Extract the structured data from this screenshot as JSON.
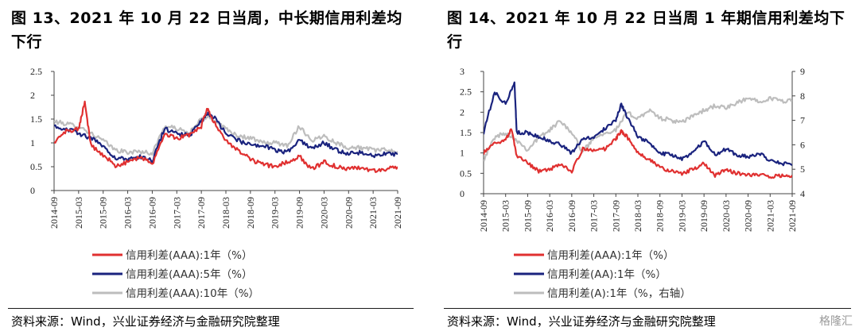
{
  "charts": [
    {
      "title": "图 13、2021 年 10 月 22 日当周，中长期信用利差均下行",
      "source": "资料来源：Wind，兴业证券经济与金融研究院整理",
      "chart_data": {
        "type": "line",
        "x_ticks": [
          "2014-09",
          "2015-03",
          "2015-09",
          "2016-03",
          "2016-09",
          "2017-03",
          "2017-09",
          "2018-03",
          "2018-09",
          "2019-03",
          "2019-09",
          "2020-03",
          "2020-09",
          "2021-03",
          "2021-09"
        ],
        "y_ticks": [
          "0",
          "0.5",
          "1",
          "1.5",
          "2",
          "2.5"
        ],
        "ylim": [
          0,
          2.5
        ],
        "legend_position": "bottom",
        "series": [
          {
            "name": "信用利差(AAA):1年（%）",
            "color": "#e03030",
            "axis": "left",
            "points": [
              [
                0,
                1.0
              ],
              [
                1,
                1.25
              ],
              [
                2,
                1.3
              ],
              [
                2.5,
                1.85
              ],
              [
                3,
                0.95
              ],
              [
                4,
                0.75
              ],
              [
                5,
                0.52
              ],
              [
                6,
                0.6
              ],
              [
                7,
                0.7
              ],
              [
                8,
                0.55
              ],
              [
                9,
                1.2
              ],
              [
                10,
                1.1
              ],
              [
                11,
                1.15
              ],
              [
                12,
                1.35
              ],
              [
                12.5,
                1.72
              ],
              [
                13,
                1.45
              ],
              [
                14,
                1.05
              ],
              [
                15,
                0.85
              ],
              [
                16,
                0.65
              ],
              [
                17,
                0.55
              ],
              [
                18,
                0.5
              ],
              [
                19,
                0.6
              ],
              [
                20,
                0.72
              ],
              [
                21,
                0.45
              ],
              [
                22,
                0.6
              ],
              [
                23,
                0.5
              ],
              [
                24,
                0.45
              ],
              [
                25,
                0.48
              ],
              [
                26,
                0.42
              ],
              [
                27,
                0.45
              ],
              [
                28,
                0.5
              ]
            ]
          },
          {
            "name": "信用利差(AAA):5年（%）",
            "color": "#1a237e",
            "axis": "left",
            "points": [
              [
                0,
                1.35
              ],
              [
                1,
                1.3
              ],
              [
                2,
                1.2
              ],
              [
                3,
                1.1
              ],
              [
                4,
                0.95
              ],
              [
                5,
                0.68
              ],
              [
                6,
                0.65
              ],
              [
                7,
                0.7
              ],
              [
                8,
                0.62
              ],
              [
                9,
                1.3
              ],
              [
                10,
                1.2
              ],
              [
                11,
                1.15
              ],
              [
                12,
                1.45
              ],
              [
                12.5,
                1.62
              ],
              [
                13,
                1.55
              ],
              [
                14,
                1.2
              ],
              [
                15,
                1.05
              ],
              [
                16,
                0.95
              ],
              [
                17,
                0.95
              ],
              [
                18,
                0.85
              ],
              [
                19,
                0.8
              ],
              [
                20,
                1.05
              ],
              [
                21,
                0.9
              ],
              [
                22,
                1.0
              ],
              [
                23,
                0.85
              ],
              [
                24,
                0.78
              ],
              [
                25,
                0.8
              ],
              [
                26,
                0.72
              ],
              [
                27,
                0.78
              ],
              [
                28,
                0.76
              ]
            ]
          },
          {
            "name": "信用利差(AAA):10年（%）",
            "color": "#bdbdbd",
            "axis": "left",
            "points": [
              [
                0,
                1.45
              ],
              [
                1,
                1.4
              ],
              [
                2,
                1.35
              ],
              [
                3,
                1.2
              ],
              [
                4,
                1.05
              ],
              [
                5,
                0.85
              ],
              [
                6,
                0.8
              ],
              [
                7,
                0.82
              ],
              [
                8,
                0.78
              ],
              [
                9,
                1.35
              ],
              [
                10,
                1.3
              ],
              [
                11,
                1.2
              ],
              [
                12,
                1.5
              ],
              [
                12.5,
                1.55
              ],
              [
                13,
                1.5
              ],
              [
                14,
                1.3
              ],
              [
                15,
                1.15
              ],
              [
                16,
                1.1
              ],
              [
                17,
                1.0
              ],
              [
                18,
                1.0
              ],
              [
                19,
                0.95
              ],
              [
                20,
                1.35
              ],
              [
                21,
                1.05
              ],
              [
                22,
                1.15
              ],
              [
                23,
                1.0
              ],
              [
                24,
                0.9
              ],
              [
                25,
                0.9
              ],
              [
                26,
                0.85
              ],
              [
                27,
                0.85
              ],
              [
                28,
                0.82
              ]
            ]
          }
        ]
      }
    },
    {
      "title": "图 14、2021 年 10 月 22 日当周 1 年期信用利差均下行",
      "source": "资料来源：Wind，兴业证券经济与金融研究院整理",
      "watermark": "格隆汇",
      "chart_data": {
        "type": "line",
        "x_ticks": [
          "2014-09",
          "2015-03",
          "2015-09",
          "2016-03",
          "2016-09",
          "2017-03",
          "2017-09",
          "2018-03",
          "2018-09",
          "2019-03",
          "2019-09",
          "2020-03",
          "2020-09",
          "2021-03",
          "2021-09"
        ],
        "y_ticks": [
          "0",
          "0.5",
          "1",
          "1.5",
          "2",
          "2.5",
          "3"
        ],
        "y2_ticks": [
          "4",
          "5",
          "6",
          "7",
          "8",
          "9"
        ],
        "ylim": [
          0,
          3
        ],
        "y2lim": [
          4,
          9
        ],
        "legend_position": "bottom",
        "series": [
          {
            "name": "信用利差(AAA):1年（%）",
            "color": "#e03030",
            "axis": "left",
            "points": [
              [
                0,
                1.0
              ],
              [
                1,
                1.25
              ],
              [
                2,
                1.3
              ],
              [
                2.5,
                1.6
              ],
              [
                3,
                0.95
              ],
              [
                4,
                0.75
              ],
              [
                5,
                0.55
              ],
              [
                6,
                0.6
              ],
              [
                7,
                0.72
              ],
              [
                8,
                0.55
              ],
              [
                9,
                1.1
              ],
              [
                10,
                1.05
              ],
              [
                11,
                1.1
              ],
              [
                12,
                1.35
              ],
              [
                12.5,
                1.55
              ],
              [
                13,
                1.4
              ],
              [
                14,
                1.0
              ],
              [
                15,
                0.85
              ],
              [
                16,
                0.65
              ],
              [
                17,
                0.55
              ],
              [
                18,
                0.5
              ],
              [
                19,
                0.6
              ],
              [
                20,
                0.75
              ],
              [
                21,
                0.45
              ],
              [
                22,
                0.6
              ],
              [
                23,
                0.5
              ],
              [
                24,
                0.45
              ],
              [
                25,
                0.48
              ],
              [
                26,
                0.42
              ],
              [
                27,
                0.45
              ],
              [
                28,
                0.45
              ]
            ]
          },
          {
            "name": "信用利差(AA):1年（%）",
            "color": "#1a237e",
            "axis": "left",
            "points": [
              [
                0,
                1.5
              ],
              [
                1,
                2.5
              ],
              [
                2,
                2.2
              ],
              [
                2.8,
                2.75
              ],
              [
                3,
                1.5
              ],
              [
                4,
                1.5
              ],
              [
                5,
                1.4
              ],
              [
                6,
                1.3
              ],
              [
                7,
                1.2
              ],
              [
                8,
                1.0
              ],
              [
                9,
                1.35
              ],
              [
                10,
                1.4
              ],
              [
                11,
                1.6
              ],
              [
                12,
                1.8
              ],
              [
                12.5,
                2.2
              ],
              [
                13,
                1.9
              ],
              [
                14,
                1.4
              ],
              [
                15,
                1.25
              ],
              [
                16,
                1.0
              ],
              [
                17,
                0.95
              ],
              [
                18,
                0.85
              ],
              [
                19,
                1.0
              ],
              [
                20,
                1.3
              ],
              [
                21,
                0.95
              ],
              [
                22,
                1.1
              ],
              [
                23,
                0.95
              ],
              [
                24,
                0.9
              ],
              [
                25,
                1.0
              ],
              [
                26,
                0.8
              ],
              [
                27,
                0.75
              ],
              [
                28,
                0.7
              ]
            ]
          },
          {
            "name": "信用利差(A):1年（%，右轴）",
            "color": "#bdbdbd",
            "axis": "right",
            "points": [
              [
                0,
                5.4
              ],
              [
                1,
                6.3
              ],
              [
                2,
                6.5
              ],
              [
                3,
                6.2
              ],
              [
                4,
                5.8
              ],
              [
                5,
                6.3
              ],
              [
                6,
                6.6
              ],
              [
                7,
                7.0
              ],
              [
                8,
                6.5
              ],
              [
                9,
                5.7
              ],
              [
                10,
                6.3
              ],
              [
                11,
                6.5
              ],
              [
                12,
                6.6
              ],
              [
                13,
                7.3
              ],
              [
                14,
                7.1
              ],
              [
                15,
                7.4
              ],
              [
                16,
                7.1
              ],
              [
                17,
                7.0
              ],
              [
                18,
                6.9
              ],
              [
                19,
                7.2
              ],
              [
                20,
                7.4
              ],
              [
                21,
                7.6
              ],
              [
                22,
                7.5
              ],
              [
                23,
                7.7
              ],
              [
                24,
                7.9
              ],
              [
                25,
                7.8
              ],
              [
                26,
                7.9
              ],
              [
                27,
                7.8
              ],
              [
                28,
                7.8
              ]
            ]
          }
        ]
      }
    }
  ]
}
